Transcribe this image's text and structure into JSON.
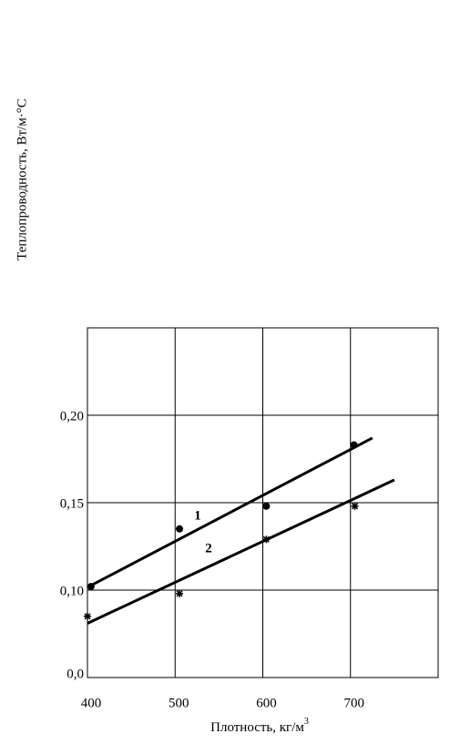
{
  "chart_data": {
    "type": "scatter",
    "y_label": "Теплопроводность, Вт/м·°С",
    "x_label": "Плотность,   кг/м",
    "x_label_sup": "3",
    "xlim": [
      400,
      800
    ],
    "xticks": [
      400,
      500,
      600,
      700
    ],
    "ylim": [
      0.05,
      0.25
    ],
    "yticks": [
      {
        "value": 0.1,
        "label": "0,10"
      },
      {
        "value": 0.15,
        "label": "0,15"
      },
      {
        "value": 0.2,
        "label": "0,20"
      }
    ],
    "y_origin_label": "0,0",
    "grid": true,
    "series": [
      {
        "name": "1",
        "marker": "dot",
        "color": "#000000",
        "x": [
          404,
          505,
          604,
          704
        ],
        "values": [
          0.102,
          0.135,
          0.148,
          0.183
        ],
        "fit": {
          "x": [
            400,
            725
          ],
          "values": [
            0.1016,
            0.187
          ]
        }
      },
      {
        "name": "2",
        "marker": "asterisk",
        "color": "#000000",
        "x": [
          400,
          505,
          604,
          705
        ],
        "values": [
          0.085,
          0.098,
          0.129,
          0.148
        ],
        "fit": {
          "x": [
            400,
            750
          ],
          "values": [
            0.081,
            0.163
          ]
        }
      }
    ]
  }
}
